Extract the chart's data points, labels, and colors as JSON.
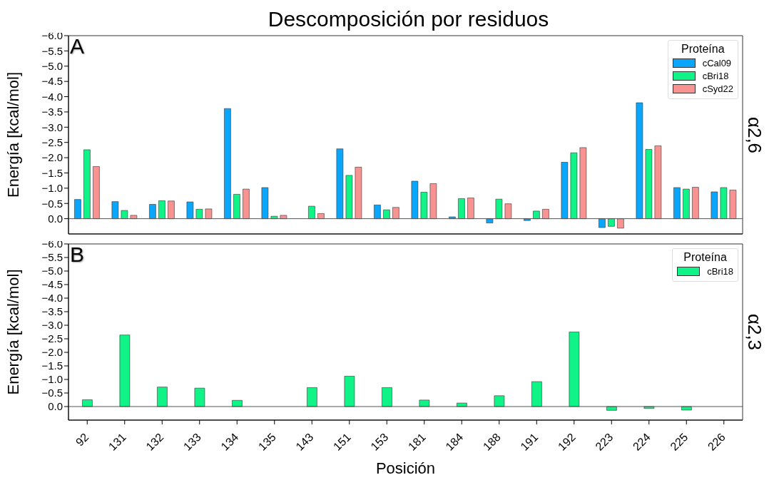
{
  "chart_data": [
    {
      "type": "bar",
      "title": "Descomposición por residuos",
      "ylabel": "Energía [kcal/mol]",
      "legend_title": "Proteína",
      "legend": "top right",
      "tick_labels": "y",
      "annotations": [
        "A",
        "α2,6"
      ],
      "categories": [
        "92",
        "131",
        "132",
        "133",
        "134",
        "135",
        "143",
        "151",
        "153",
        "181",
        "184",
        "188",
        "191",
        "192",
        "223",
        "224",
        "225",
        "226"
      ],
      "ylim": [
        0.5,
        -6.0
      ],
      "yticks": [
        {
          "value": -6.0,
          "label": "−6.0"
        },
        {
          "value": -5.5,
          "label": "−5.5"
        },
        {
          "value": -5.0,
          "label": "−5.0"
        },
        {
          "value": -4.5,
          "label": "−4.5"
        },
        {
          "value": -4.0,
          "label": "−4.0"
        },
        {
          "value": -3.5,
          "label": "−3.5"
        },
        {
          "value": -3.0,
          "label": "−3.0"
        },
        {
          "value": -2.5,
          "label": "−2.5"
        },
        {
          "value": -2.0,
          "label": "−2.0"
        },
        {
          "value": -1.5,
          "label": "−1.5"
        },
        {
          "value": -1.0,
          "label": "−1.0"
        },
        {
          "value": -0.5,
          "label": "−0.5"
        },
        {
          "value": 0.0,
          "label": "0.0"
        }
      ],
      "ref_lines": [
        {
          "axis": "y",
          "value": 0
        }
      ],
      "series": [
        {
          "name": "cCal09",
          "color": "#0aa6fb",
          "values": [
            -0.63,
            -0.56,
            -0.47,
            -0.55,
            -3.61,
            -1.02,
            null,
            -2.29,
            -0.45,
            -1.23,
            -0.06,
            0.14,
            0.06,
            -1.85,
            0.29,
            -3.8,
            -1.02,
            -0.88
          ]
        },
        {
          "name": "cBri18",
          "color": "#0ff387",
          "values": [
            -2.26,
            -0.27,
            -0.59,
            -0.31,
            -0.8,
            -0.08,
            -0.41,
            -1.42,
            -0.29,
            -0.87,
            -0.66,
            -0.64,
            -0.25,
            -2.16,
            0.25,
            -2.27,
            -0.97,
            -1.02
          ]
        },
        {
          "name": "cSyd22",
          "color": "#f99391",
          "values": [
            -1.71,
            -0.11,
            -0.58,
            -0.32,
            -0.97,
            -0.11,
            -0.17,
            -1.69,
            -0.37,
            -1.15,
            -0.68,
            -0.49,
            -0.31,
            -2.33,
            0.31,
            -2.39,
            -1.03,
            -0.94
          ]
        }
      ]
    },
    {
      "type": "bar",
      "xlabel": "Posición",
      "ylabel": "Energía [kcal/mol]",
      "legend_title": "Proteína",
      "legend": "top right",
      "annotations": [
        "B",
        "α2,3"
      ],
      "categories": [
        "92",
        "131",
        "132",
        "133",
        "134",
        "135",
        "143",
        "151",
        "153",
        "181",
        "184",
        "188",
        "191",
        "192",
        "223",
        "224",
        "225",
        "226"
      ],
      "ylim": [
        0.5,
        -6.0
      ],
      "yticks": [
        {
          "value": -6.0,
          "label": "−6.0"
        },
        {
          "value": -5.5,
          "label": "−5.5"
        },
        {
          "value": -5.0,
          "label": "−5.0"
        },
        {
          "value": -4.5,
          "label": "−4.5"
        },
        {
          "value": -4.0,
          "label": "−4.0"
        },
        {
          "value": -3.5,
          "label": "−3.5"
        },
        {
          "value": -3.0,
          "label": "−3.0"
        },
        {
          "value": -2.5,
          "label": "−2.5"
        },
        {
          "value": -2.0,
          "label": "−2.0"
        },
        {
          "value": -1.5,
          "label": "−1.5"
        },
        {
          "value": -1.0,
          "label": "−1.0"
        },
        {
          "value": -0.5,
          "label": "−0.5"
        },
        {
          "value": 0.0,
          "label": "0.0"
        }
      ],
      "ref_lines": [
        {
          "axis": "y",
          "value": 0
        }
      ],
      "series": [
        {
          "name": "cBri18",
          "color": "#0ff387",
          "values": [
            -0.25,
            -2.64,
            -0.72,
            -0.68,
            -0.23,
            null,
            -0.7,
            -1.12,
            -0.7,
            -0.24,
            -0.13,
            -0.4,
            -0.92,
            -2.75,
            0.14,
            0.07,
            0.13,
            null
          ]
        }
      ]
    }
  ]
}
